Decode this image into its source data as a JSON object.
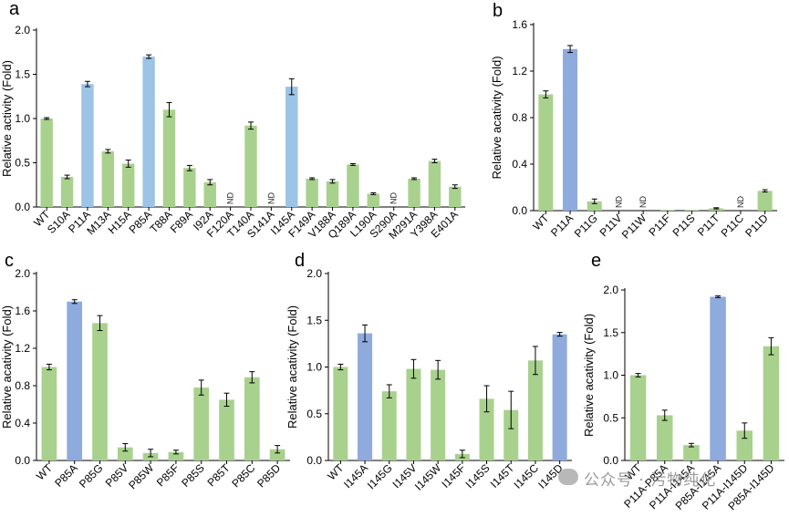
{
  "colors": {
    "green": "#a9d18e",
    "blue": "#8faadc",
    "lightblue": "#9dc3e6",
    "axis": "#000000",
    "nd_text": "#222222"
  },
  "watermark": {
    "text": "公众号 · 污物纯化"
  },
  "chart_data": [
    {
      "panel": "a",
      "type": "bar",
      "ylabel": "Relative activity (Fold)",
      "ylim": [
        0,
        2.0
      ],
      "yticks": [
        "0.0",
        "0.5",
        "1.0",
        "1.5",
        "2.0"
      ],
      "ytick_values": [
        0,
        0.5,
        1.0,
        1.5,
        2.0
      ],
      "categories": [
        "WT",
        "S10A",
        "P11A",
        "M13A",
        "H15A",
        "P85A",
        "T88A",
        "F89A",
        "I92A",
        "F120A",
        "T140A",
        "S141A",
        "I145A",
        "F149A",
        "V188A",
        "Q189A",
        "L190A",
        "S290A",
        "M291A",
        "Y398A",
        "E401A"
      ],
      "values": [
        1.0,
        0.34,
        1.39,
        0.63,
        0.49,
        1.7,
        1.1,
        0.44,
        0.28,
        null,
        0.92,
        null,
        1.36,
        0.32,
        0.29,
        0.48,
        0.15,
        null,
        0.32,
        0.52,
        0.23
      ],
      "errors": [
        0.01,
        0.02,
        0.03,
        0.02,
        0.04,
        0.02,
        0.08,
        0.03,
        0.03,
        null,
        0.04,
        null,
        0.09,
        0.01,
        0.02,
        0.01,
        0.01,
        null,
        0.01,
        0.02,
        0.02
      ],
      "highlight": [
        "green",
        "green",
        "lightblue",
        "green",
        "green",
        "lightblue",
        "green",
        "green",
        "green",
        "green",
        "green",
        "green",
        "lightblue",
        "green",
        "green",
        "green",
        "green",
        "green",
        "green",
        "green",
        "green"
      ],
      "nd_label": "ND"
    },
    {
      "panel": "b",
      "type": "bar",
      "ylabel": "Relative acativity (Fold)",
      "ylim": [
        0,
        1.6
      ],
      "yticks": [
        "0.0",
        "0.4",
        "0.8",
        "1.2",
        "1.6"
      ],
      "ytick_values": [
        0,
        0.4,
        0.8,
        1.2,
        1.6
      ],
      "categories": [
        "WT",
        "P11A",
        "P11G",
        "P11V",
        "P11W",
        "P11F",
        "P11S",
        "P11T",
        "P11C",
        "P11D"
      ],
      "values": [
        1.0,
        1.39,
        0.08,
        null,
        null,
        0.005,
        0.005,
        0.02,
        null,
        0.17
      ],
      "errors": [
        0.03,
        0.03,
        0.02,
        null,
        null,
        0,
        0,
        0.005,
        null,
        0.01
      ],
      "highlight": [
        "green",
        "blue",
        "green",
        "green",
        "green",
        "green",
        "green",
        "green",
        "green",
        "green"
      ],
      "nd_label": "ND"
    },
    {
      "panel": "c",
      "type": "bar",
      "ylabel": "Relative acativity (Fold)",
      "ylim": [
        0,
        2.0
      ],
      "yticks": [
        "0.0",
        "0.4",
        "0.8",
        "1.2",
        "1.6",
        "2.0"
      ],
      "ytick_values": [
        0,
        0.4,
        0.8,
        1.2,
        1.6,
        2.0
      ],
      "categories": [
        "WT",
        "P85A",
        "P85G",
        "P85V",
        "P85W",
        "P85F",
        "P85S",
        "P85T",
        "P85C",
        "P85D"
      ],
      "values": [
        1.0,
        1.7,
        1.47,
        0.14,
        0.08,
        0.09,
        0.78,
        0.65,
        0.89,
        0.12
      ],
      "errors": [
        0.03,
        0.02,
        0.08,
        0.04,
        0.04,
        0.02,
        0.08,
        0.07,
        0.06,
        0.04
      ],
      "highlight": [
        "green",
        "blue",
        "green",
        "green",
        "green",
        "green",
        "green",
        "green",
        "green",
        "green"
      ],
      "nd_label": "ND"
    },
    {
      "panel": "d",
      "type": "bar",
      "ylabel": "Relative acativity (Fold)",
      "ylim": [
        0,
        2.0
      ],
      "yticks": [
        "0.0",
        "0.5",
        "1.0",
        "1.5",
        "2.0"
      ],
      "ytick_values": [
        0,
        0.5,
        1.0,
        1.5,
        2.0
      ],
      "categories": [
        "WT",
        "I145A",
        "I145G",
        "I145V",
        "I145W",
        "I145F",
        "I145S",
        "I145T",
        "I145C",
        "I145D"
      ],
      "values": [
        1.0,
        1.36,
        0.74,
        0.98,
        0.97,
        0.07,
        0.66,
        0.54,
        1.07,
        1.35
      ],
      "errors": [
        0.03,
        0.09,
        0.07,
        0.1,
        0.1,
        0.04,
        0.14,
        0.2,
        0.15,
        0.02
      ],
      "highlight": [
        "green",
        "blue",
        "green",
        "green",
        "green",
        "green",
        "green",
        "green",
        "green",
        "blue"
      ],
      "nd_label": "ND"
    },
    {
      "panel": "e",
      "type": "bar",
      "ylabel": "Relative acativity (Fold)",
      "ylim": [
        0,
        2.0
      ],
      "yticks": [
        "0.0",
        "0.5",
        "1.0",
        "1.5",
        "2.0"
      ],
      "ytick_values": [
        0,
        0.5,
        1.0,
        1.5,
        2.0
      ],
      "categories": [
        "WT",
        "P11A-P85A",
        "P11A-I145A",
        "P85A-I145A",
        "P11A-I145D",
        "P85A-I145D"
      ],
      "values": [
        1.0,
        0.53,
        0.18,
        1.92,
        0.35,
        1.34
      ],
      "errors": [
        0.02,
        0.06,
        0.02,
        0.01,
        0.09,
        0.1
      ],
      "highlight": [
        "green",
        "green",
        "green",
        "blue",
        "green",
        "green"
      ],
      "nd_label": "ND"
    }
  ]
}
